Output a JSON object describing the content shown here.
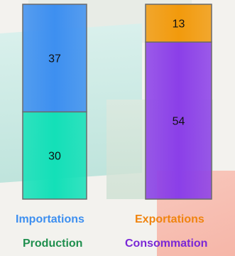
{
  "chart_data": {
    "type": "bar",
    "stacked": true,
    "categories": [
      "",
      ""
    ],
    "series": [
      {
        "name": "Production",
        "values": [
          30,
          null
        ],
        "color": "#13e0b8"
      },
      {
        "name": "Importations",
        "values": [
          37,
          null
        ],
        "color": "#3d8ff0"
      },
      {
        "name": "Consommation",
        "values": [
          null,
          54
        ],
        "color": "#8b3fe8"
      },
      {
        "name": "Exportations",
        "values": [
          null,
          13
        ],
        "color": "#f29a0c"
      }
    ],
    "ylim": [
      0,
      67
    ],
    "grid": false
  },
  "legend": {
    "importations": {
      "label": "Importations",
      "color": "#3d8ff0"
    },
    "exportations": {
      "label": "Exportations",
      "color": "#f0840f"
    },
    "production": {
      "label": "Production",
      "color": "#1f8f4e"
    },
    "consommation": {
      "label": "Consommation",
      "color": "#7a28d6"
    }
  }
}
